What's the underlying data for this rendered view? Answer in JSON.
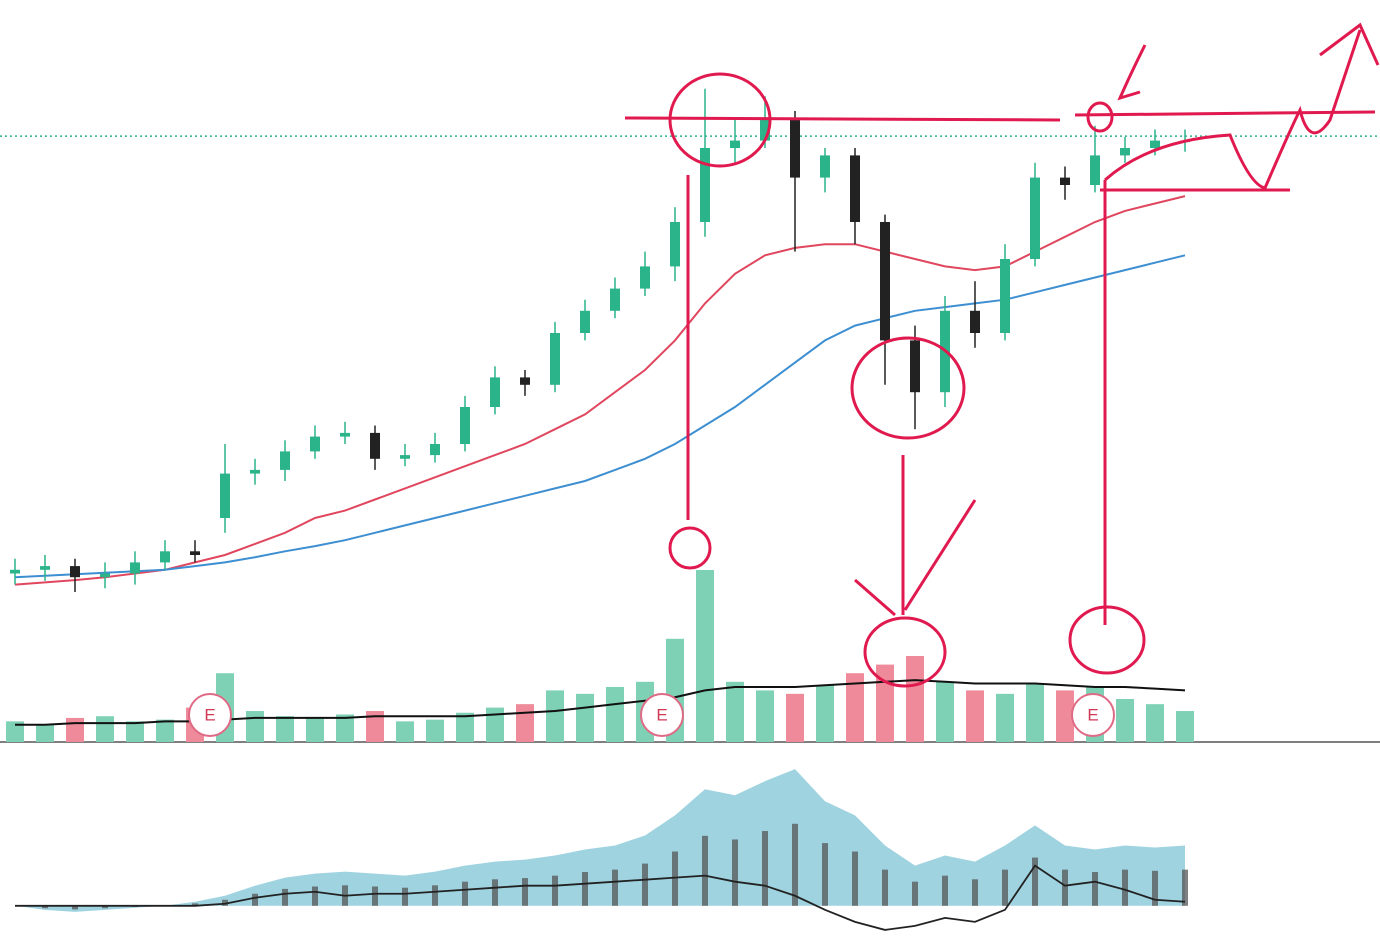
{
  "chart_data": [
    {
      "type": "candlestick",
      "open": [
        22.5,
        23,
        23.5,
        22,
        22.5,
        24,
        25.5,
        30,
        36,
        36.5,
        39,
        41,
        41.5,
        38,
        38.5,
        40,
        45,
        49,
        48,
        55,
        58,
        61,
        64,
        70,
        80,
        81,
        84,
        76,
        79,
        70,
        54,
        47,
        58,
        55,
        65,
        76,
        75,
        79,
        80,
        81
      ],
      "high": [
        24.5,
        25,
        24.5,
        24,
        25.5,
        27,
        27,
        40,
        38,
        40.5,
        42.5,
        43,
        42.5,
        40,
        41.5,
        46.5,
        50.5,
        50,
        56.5,
        59.5,
        62.5,
        66,
        72,
        88,
        84,
        87,
        85,
        80,
        80,
        71,
        56,
        60,
        62,
        67,
        78,
        77.5,
        83,
        81.5,
        82.5,
        82.5
      ],
      "low": [
        21,
        21.5,
        20,
        20.5,
        21,
        23,
        24,
        28,
        34.5,
        35,
        38,
        40,
        36.5,
        37,
        37.5,
        39,
        44,
        46.5,
        47,
        54,
        57,
        60,
        62,
        68,
        78,
        80,
        66,
        74,
        67,
        48,
        42,
        45,
        53,
        54,
        64,
        73,
        74,
        78,
        79,
        79.5
      ],
      "close": [
        23,
        23.5,
        22,
        22.5,
        24,
        25.5,
        25,
        36,
        36.5,
        39,
        41,
        41.5,
        38,
        38.5,
        40,
        45,
        49,
        48,
        55,
        58,
        61,
        64,
        70,
        80,
        81,
        84,
        76,
        79,
        70,
        54,
        47,
        58,
        55,
        65,
        76,
        75,
        79,
        80,
        81,
        81
      ],
      "up_color": "#2bb38a",
      "down_color": "#222222",
      "moving_averages": [
        {
          "color": "#e0475f",
          "values": [
            21,
            21.3,
            21.6,
            22,
            22.5,
            23,
            24,
            25,
            26.5,
            28,
            30,
            31,
            32.5,
            34,
            35.5,
            37,
            38.5,
            40,
            42,
            44,
            47,
            50,
            54,
            59,
            63,
            65.5,
            66.5,
            67,
            67,
            66,
            65,
            64,
            63.5,
            64,
            66,
            68,
            70,
            71.5,
            72.5,
            73.5
          ]
        },
        {
          "color": "#3d8fd1",
          "values": [
            22,
            22.2,
            22.4,
            22.6,
            22.8,
            23,
            23.5,
            24,
            24.7,
            25.5,
            26.2,
            27,
            28,
            29,
            30,
            31,
            32,
            33,
            34,
            35,
            36.5,
            38,
            40,
            42.5,
            45,
            48,
            51,
            54,
            56,
            57,
            58,
            58.5,
            59,
            59.5,
            60.5,
            61.5,
            62.5,
            63.5,
            64.5,
            65.5
          ]
        }
      ],
      "reference_line": 81.6,
      "reference_color": "#2bb38a",
      "ylim": [
        0,
        100
      ]
    },
    {
      "type": "bar",
      "values": [
        12,
        10,
        14,
        15,
        12,
        13,
        20,
        40,
        18,
        15,
        14,
        16,
        18,
        12,
        13,
        17,
        20,
        22,
        30,
        28,
        32,
        35,
        60,
        100,
        35,
        30,
        28,
        33,
        40,
        45,
        50,
        35,
        30,
        28,
        34,
        30,
        32,
        25,
        22,
        18
      ],
      "average": [
        10,
        10,
        11,
        11,
        11,
        12,
        12,
        13,
        14,
        14,
        14,
        14,
        15,
        15,
        15,
        15,
        16,
        17,
        18,
        20,
        22,
        24,
        26,
        30,
        32,
        32,
        32,
        33,
        34,
        35,
        36,
        35,
        34,
        34,
        34,
        33,
        32,
        32,
        31,
        30
      ],
      "up_color": "#7fd1b5",
      "down_color": "#ee8a99",
      "average_color": "#111111",
      "earnings_labels": [
        "E",
        "E",
        "E"
      ],
      "ylim": [
        0,
        100
      ]
    },
    {
      "type": "area",
      "values": [
        0,
        -2,
        -3,
        -2,
        -1,
        0,
        2,
        5,
        10,
        14,
        16,
        17,
        16,
        15,
        17,
        20,
        22,
        23,
        25,
        28,
        30,
        35,
        45,
        58,
        55,
        62,
        68,
        52,
        45,
        30,
        20,
        25,
        22,
        30,
        40,
        30,
        28,
        30,
        29,
        30
      ],
      "line": [
        0,
        0,
        0,
        0,
        0,
        0,
        0,
        1,
        4,
        6,
        7,
        5,
        6,
        6,
        7,
        8,
        9,
        10,
        10,
        11,
        12,
        13,
        14,
        15,
        12,
        10,
        5,
        -2,
        -8,
        -12,
        -10,
        -6,
        -8,
        -2,
        20,
        10,
        12,
        8,
        3,
        2
      ],
      "color": "#9fd3e0",
      "line_color": "#222222",
      "ylim": [
        -20,
        80
      ]
    }
  ]
}
